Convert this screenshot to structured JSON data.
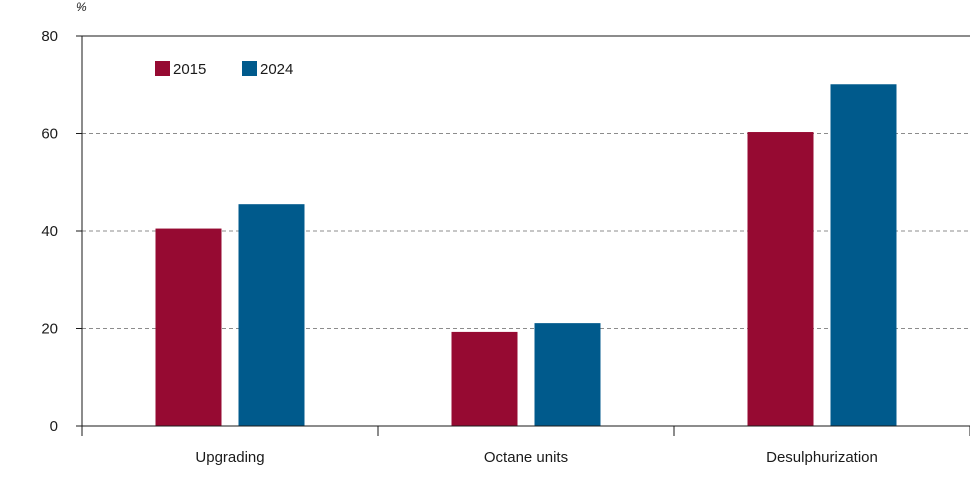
{
  "chart_data": {
    "type": "bar",
    "ylabel": "%",
    "ylim": [
      0,
      80
    ],
    "yticks": [
      0,
      20,
      40,
      60,
      80
    ],
    "grid": "horizontal-dashed",
    "legend_position": "top-left",
    "categories": [
      "Upgrading",
      "Octane units",
      "Desulphurization"
    ],
    "series": [
      {
        "name": "2015",
        "color": "#960a32",
        "values": [
          40.5,
          19.3,
          60.3
        ]
      },
      {
        "name": "2024",
        "color": "#005a8c",
        "values": [
          45.5,
          21.1,
          70.1
        ]
      }
    ]
  }
}
